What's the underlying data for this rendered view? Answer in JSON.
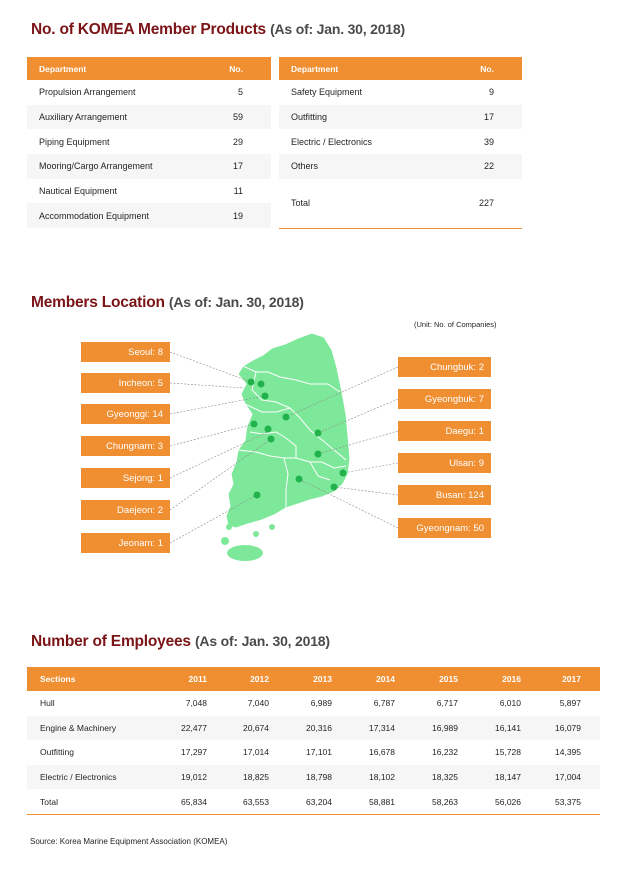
{
  "products": {
    "title": "No. of KOMEA Member Products",
    "as_of": "(As of: Jan. 30, 2018)",
    "left_table": {
      "headers": [
        "Department",
        "No."
      ],
      "rows": [
        [
          "Propulsion Arrangement",
          "5"
        ],
        [
          "Auxiliary Arrangement",
          "59"
        ],
        [
          "Piping Equipment",
          "29"
        ],
        [
          "Mooring/Cargo Arrangement",
          "17"
        ],
        [
          "Nautical Equipment",
          "11"
        ],
        [
          "Accommodation Equipment",
          "19"
        ]
      ]
    },
    "right_table": {
      "headers": [
        "Department",
        "No."
      ],
      "rows": [
        [
          "Safety Equipment",
          "9"
        ],
        [
          "Outfitting",
          "17"
        ],
        [
          "Electric / Electronics",
          "39"
        ],
        [
          "Others",
          "22"
        ]
      ],
      "total": [
        "Total",
        "227"
      ]
    }
  },
  "location": {
    "title": "Members Location",
    "as_of": "(As of: Jan. 30, 2018)",
    "unit": "(Unit: No. of Companies)",
    "left_labels": [
      "Seoul: 8",
      "Incheon: 5",
      "Gyeonggi: 14",
      "Chungnam: 3",
      "Sejong: 1",
      "Daejeon: 2",
      "Jeonam: 1"
    ],
    "right_labels": [
      "Chungbuk: 2",
      "Gyeongbuk: 7",
      "Daegu: 1",
      "Ulsan: 9",
      "Busan: 124",
      "Gyeongnam: 50"
    ],
    "colors": {
      "map": "#7ee89a",
      "marker": "#22b24c",
      "label_bg": "#f08e32"
    }
  },
  "employees": {
    "title": "Number of Employees",
    "as_of": "(As of: Jan. 30, 2018)",
    "headers": [
      "Sections",
      "2011",
      "2012",
      "2013",
      "2014",
      "2015",
      "2016",
      "2017"
    ],
    "rows": [
      [
        "Hull",
        "7,048",
        "7,040",
        "6,989",
        "6,787",
        "6,717",
        "6,010",
        "5,897"
      ],
      [
        "Engine & Machinery",
        "22,477",
        "20,674",
        "20,316",
        "17,314",
        "16,989",
        "16,141",
        "16,079"
      ],
      [
        "Outfitting",
        "17,297",
        "17,014",
        "17,101",
        "16,678",
        "16,232",
        "15,728",
        "14,395"
      ],
      [
        "Electric / Electronics",
        "19,012",
        "18,825",
        "18,798",
        "18,102",
        "18,325",
        "18,147",
        "17,004"
      ],
      [
        "Total",
        "65,834",
        "63,553",
        "63,204",
        "58,881",
        "58,263",
        "56,026",
        "53,375"
      ]
    ]
  },
  "source": "Source: Korea Marine Equipment Association (KOMEA)"
}
